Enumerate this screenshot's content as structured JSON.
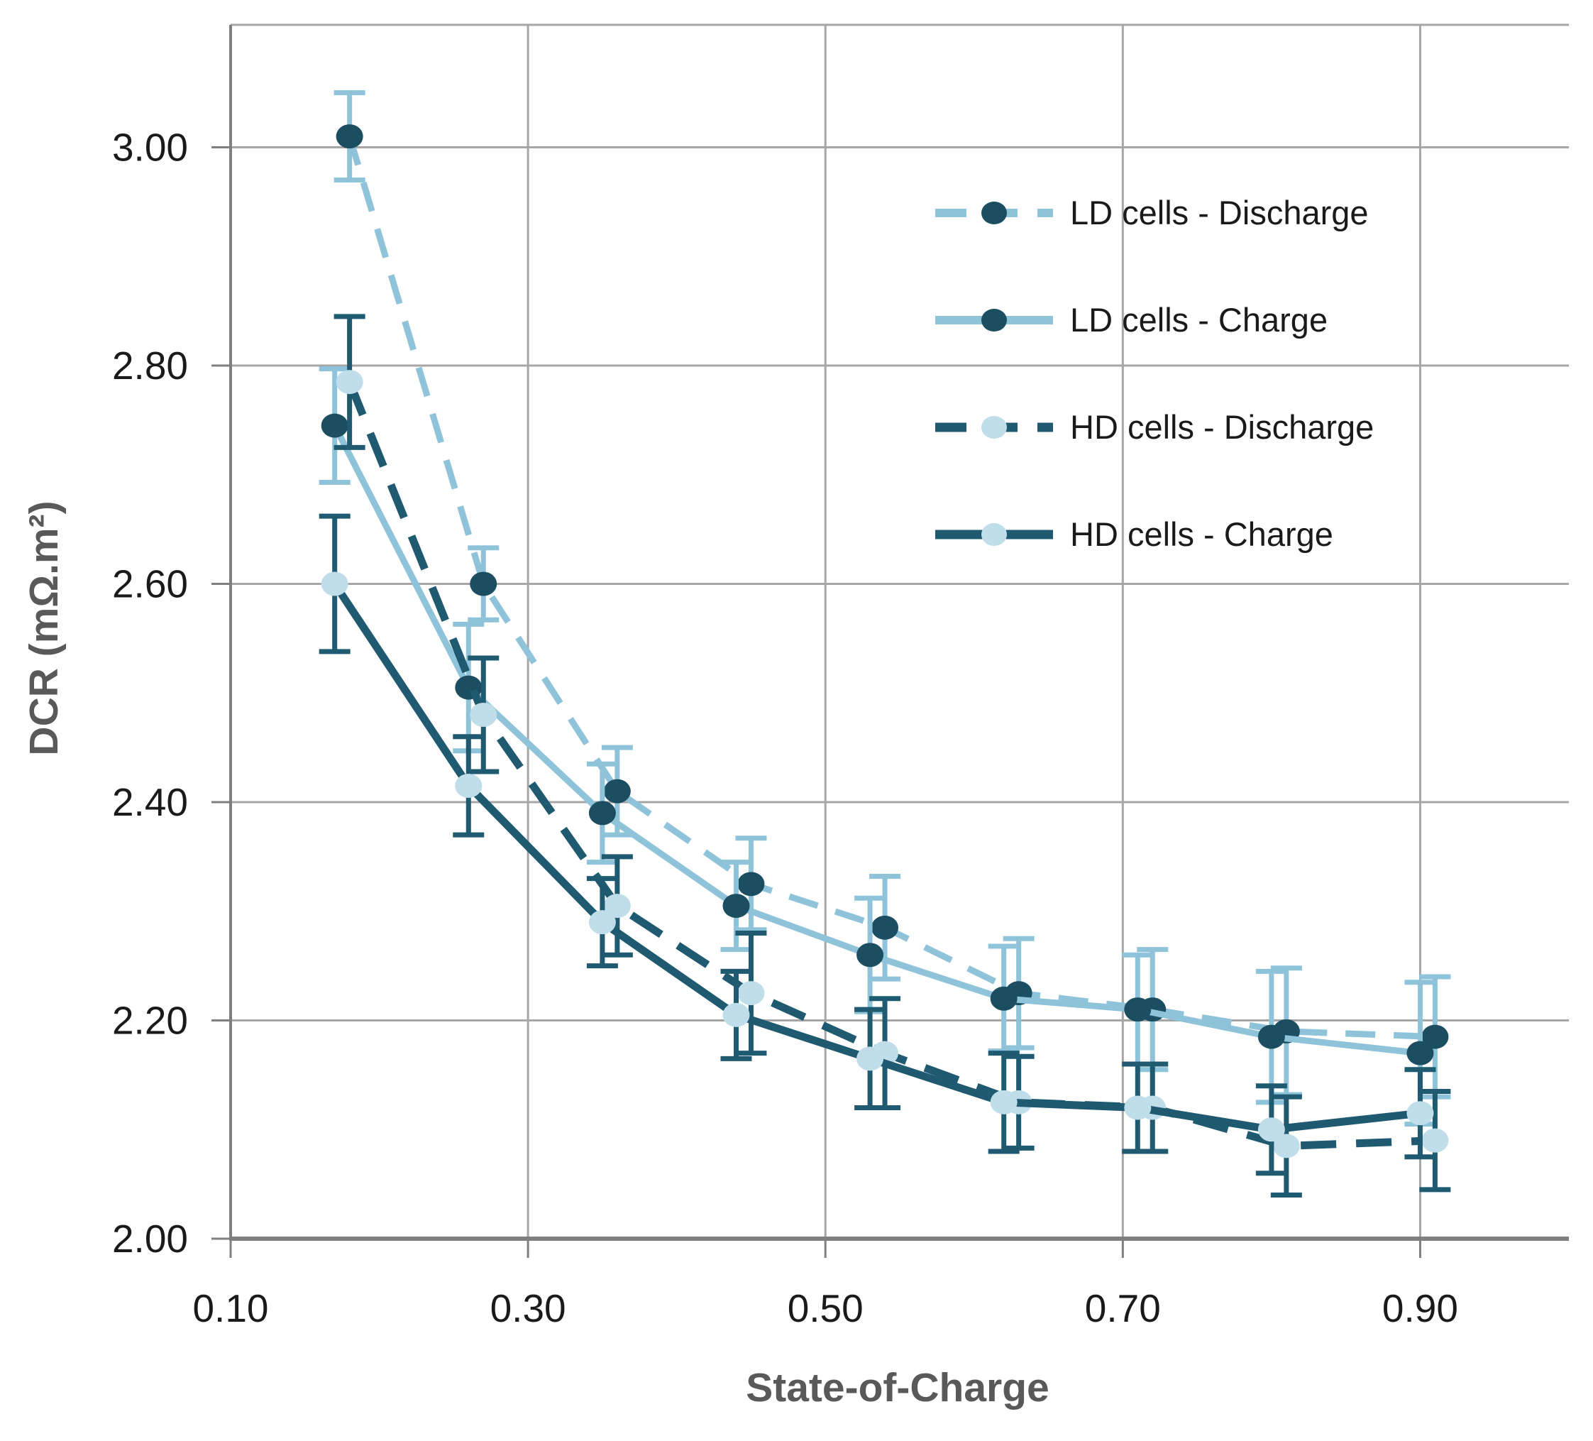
{
  "chart_data": {
    "type": "line",
    "title": "",
    "xlabel": "State-of-Charge",
    "ylabel": "DCR (mΩ.m²)",
    "xlim": [
      0.1,
      1.0
    ],
    "ylim": [
      2.0,
      3.11
    ],
    "grid": true,
    "legend_position": "upper right",
    "x_ticks": [
      0.1,
      0.3,
      0.5,
      0.7,
      0.9
    ],
    "x_tick_labels": [
      "0.10",
      "0.30",
      "0.50",
      "0.70",
      "0.90"
    ],
    "y_ticks": [
      2.0,
      2.2,
      2.4,
      2.6,
      2.8,
      3.0
    ],
    "y_tick_labels": [
      "2.00",
      "2.20",
      "2.40",
      "2.60",
      "2.80",
      "3.00"
    ],
    "series": [
      {
        "name": "LD cells - Discharge",
        "line_style": "dashed",
        "line_color": "#8fc3d9",
        "marker_color": "#1c4e61",
        "marker_shape": "circle-dark",
        "error_color": "#8fc3d9",
        "x": [
          0.18,
          0.27,
          0.36,
          0.45,
          0.54,
          0.63,
          0.72,
          0.81,
          0.91
        ],
        "y": [
          3.01,
          2.6,
          2.41,
          2.325,
          2.285,
          2.225,
          2.21,
          2.19,
          2.185
        ],
        "err": [
          0.04,
          0.033,
          0.04,
          0.042,
          0.047,
          0.05,
          0.055,
          0.058,
          0.055
        ]
      },
      {
        "name": "LD cells - Charge",
        "line_style": "solid",
        "line_color": "#8fc3d9",
        "marker_color": "#1c4e61",
        "marker_shape": "circle-dark",
        "error_color": "#8fc3d9",
        "x": [
          0.17,
          0.26,
          0.35,
          0.44,
          0.53,
          0.62,
          0.71,
          0.8,
          0.9
        ],
        "y": [
          2.745,
          2.505,
          2.39,
          2.305,
          2.26,
          2.22,
          2.21,
          2.185,
          2.17
        ],
        "err": [
          0.052,
          0.058,
          0.045,
          0.04,
          0.052,
          0.048,
          0.05,
          0.06,
          0.065
        ]
      },
      {
        "name": "HD cells - Discharge",
        "line_style": "dashed",
        "line_color": "#1f5a70",
        "marker_color": "#bfdee9",
        "marker_shape": "circle-light",
        "error_color": "#1f5a70",
        "x": [
          0.18,
          0.27,
          0.36,
          0.45,
          0.54,
          0.63,
          0.72,
          0.81,
          0.91
        ],
        "y": [
          2.785,
          2.48,
          2.305,
          2.225,
          2.17,
          2.125,
          2.12,
          2.085,
          2.09
        ],
        "err": [
          0.06,
          0.052,
          0.045,
          0.055,
          0.05,
          0.042,
          0.04,
          0.045,
          0.045
        ]
      },
      {
        "name": "HD cells - Charge",
        "line_style": "solid",
        "line_color": "#1f5a70",
        "marker_color": "#bfdee9",
        "marker_shape": "circle-light",
        "error_color": "#1f5a70",
        "x": [
          0.17,
          0.26,
          0.35,
          0.44,
          0.53,
          0.62,
          0.71,
          0.8,
          0.9
        ],
        "y": [
          2.6,
          2.415,
          2.29,
          2.205,
          2.165,
          2.125,
          2.12,
          2.1,
          2.115
        ],
        "err": [
          0.062,
          0.045,
          0.04,
          0.04,
          0.045,
          0.045,
          0.04,
          0.04,
          0.04
        ]
      }
    ]
  },
  "colors": {
    "background": "#ffffff",
    "gridline": "#a6a6a6",
    "axis_line": "#7f7f7f",
    "tick_label": "#1a1a1a",
    "axis_title": "#595959",
    "legend_text": "#1a1a1a",
    "ld_line_light_blue": "#8fc3d9",
    "hd_line_dark_teal": "#1f5a70",
    "marker_dark": "#1c4e61",
    "marker_light": "#bfdee9"
  }
}
